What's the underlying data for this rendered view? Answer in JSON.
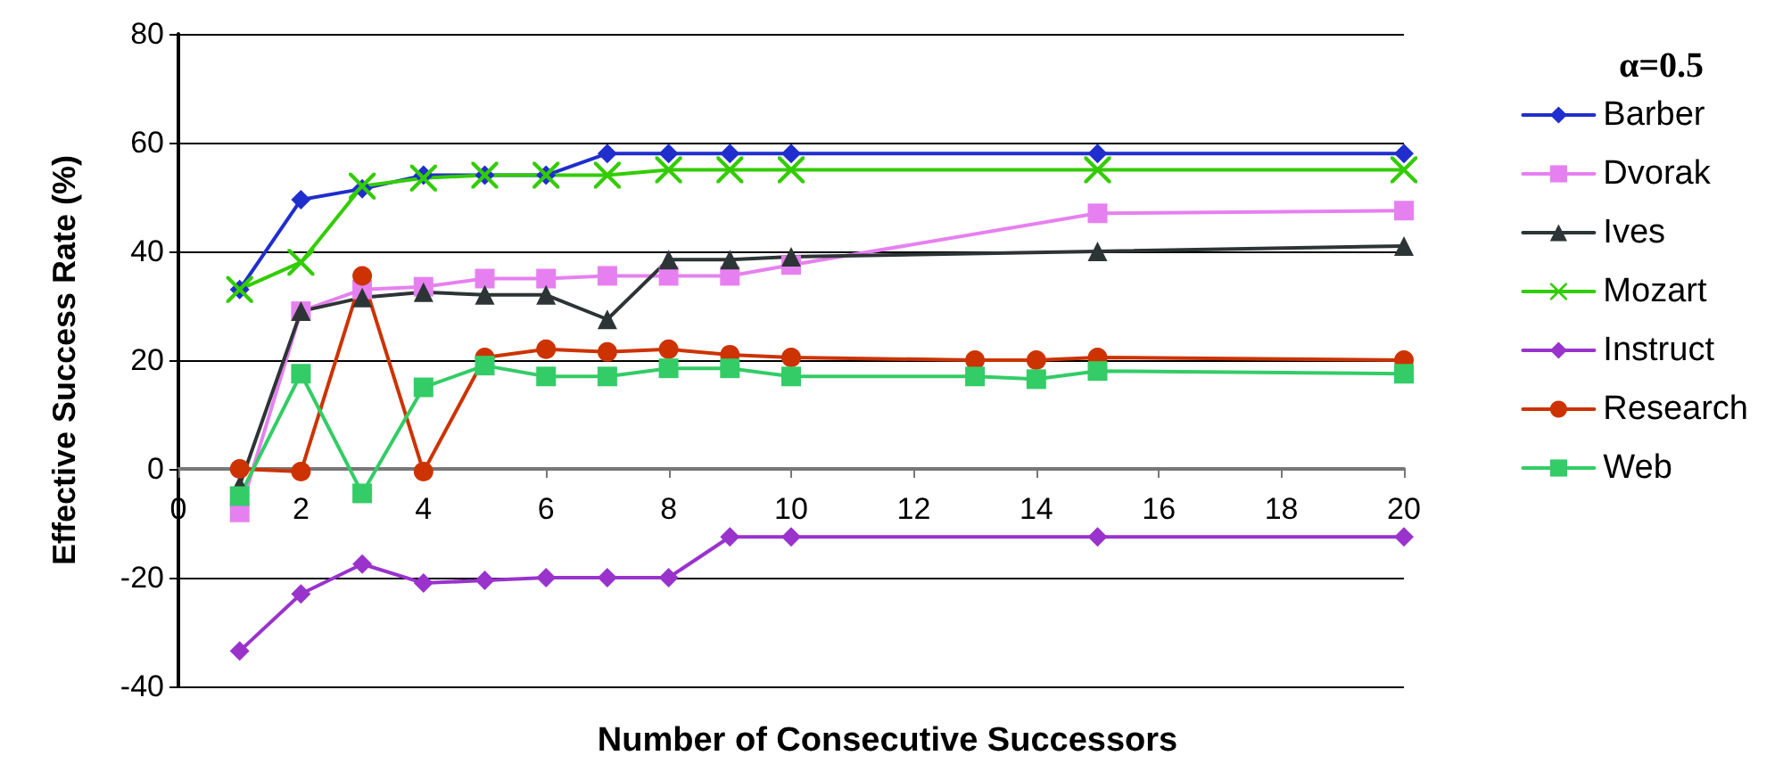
{
  "chart_data": {
    "type": "line",
    "xlabel": "Number of Consecutive Successors",
    "ylabel": "Effective Success Rate (%)",
    "legend_title": "α=0.5",
    "legend": "right",
    "grid": "y",
    "line_style": "solid",
    "xlim": [
      0,
      20
    ],
    "xticks": [
      0,
      2,
      4,
      6,
      8,
      10,
      12,
      14,
      16,
      18,
      20
    ],
    "ylim": [
      -40,
      80
    ],
    "yticks": [
      -40,
      -20,
      0,
      20,
      40,
      60,
      80
    ],
    "series": [
      {
        "name": "Barber",
        "color": "#1f2ecc",
        "marker": "diamond",
        "x": [
          1,
          2,
          3,
          4,
          5,
          6,
          7,
          8,
          9,
          10,
          15,
          20
        ],
        "values": [
          33,
          49.5,
          51.5,
          54,
          54,
          54,
          58,
          58,
          58,
          58,
          58,
          58
        ]
      },
      {
        "name": "Dvorak",
        "color": "#e680f0",
        "marker": "square",
        "x": [
          1,
          2,
          3,
          4,
          5,
          6,
          7,
          8,
          9,
          10,
          15,
          20
        ],
        "values": [
          -8,
          29,
          33,
          33.5,
          35,
          35,
          35.5,
          35.5,
          35.5,
          37.5,
          47,
          47.5
        ]
      },
      {
        "name": "Ives",
        "color": "#2d3436",
        "marker": "triangle",
        "x": [
          1,
          2,
          3,
          4,
          5,
          6,
          7,
          8,
          9,
          10,
          15,
          20
        ],
        "values": [
          -3,
          29,
          31.5,
          32.5,
          32,
          32,
          27.5,
          38.5,
          38.5,
          39,
          40,
          41
        ]
      },
      {
        "name": "Mozart",
        "color": "#33cc00",
        "marker": "cross",
        "x": [
          1,
          2,
          3,
          4,
          5,
          6,
          7,
          8,
          9,
          10,
          15,
          20
        ],
        "values": [
          33,
          38,
          52,
          53.5,
          54,
          54,
          54,
          55,
          55,
          55,
          55,
          55
        ]
      },
      {
        "name": "Instruct",
        "color": "#9933cc",
        "marker": "diamond",
        "x": [
          1,
          2,
          3,
          4,
          5,
          6,
          7,
          8,
          9,
          10,
          15,
          20
        ],
        "values": [
          -33.5,
          -23,
          -17.5,
          -21,
          -20.5,
          -20,
          -20,
          -20,
          -12.5,
          -12.5,
          -12.5,
          -12.5
        ]
      },
      {
        "name": "Research",
        "color": "#cc3300",
        "marker": "circle",
        "x": [
          1,
          2,
          3,
          4,
          5,
          6,
          7,
          8,
          9,
          10,
          13,
          14,
          15,
          20
        ],
        "values": [
          0,
          -0.5,
          35.5,
          -0.5,
          20.5,
          22,
          21.5,
          22,
          21,
          20.5,
          20,
          20,
          20.5,
          20
        ]
      },
      {
        "name": "Web",
        "color": "#33cc66",
        "marker": "square",
        "x": [
          1,
          2,
          3,
          4,
          5,
          6,
          7,
          8,
          9,
          10,
          13,
          14,
          15,
          20
        ],
        "values": [
          -5,
          17.5,
          -4.5,
          15,
          19,
          17,
          17,
          18.5,
          18.5,
          17,
          17,
          16.5,
          18,
          17.5
        ]
      }
    ]
  }
}
